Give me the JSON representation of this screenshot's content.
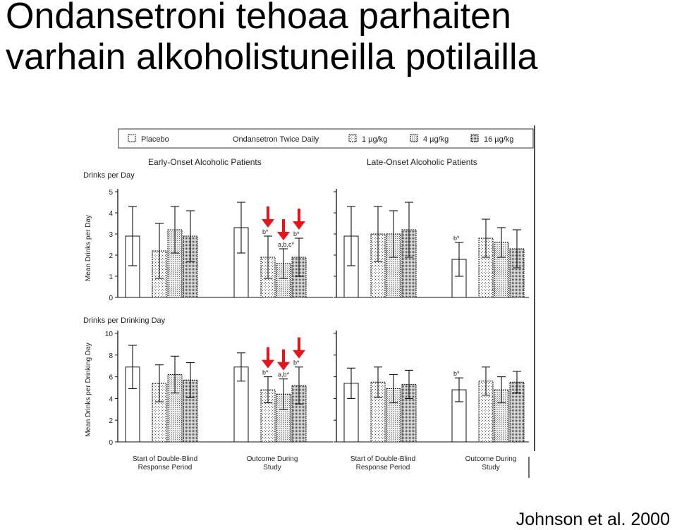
{
  "title_line1": "Ondansetroni tehoaa parhaiten",
  "title_line2": "varhain alkoholistuneilla potilailla",
  "citation": "Johnson et al. 2000",
  "legend": {
    "placebo": "Placebo",
    "group_label": "Ondansetron Twice Daily",
    "dose1": "1 µg/kg",
    "dose4": "4 µg/kg",
    "dose16": "16 µg/kg"
  },
  "panels": {
    "early": "Early-Onset Alcoholic Patients",
    "late": "Late-Onset Alcoholic Patients"
  },
  "sections": {
    "top_heading": "Drinks per Day",
    "top_ylabel": "Mean Drinks per Day",
    "bottom_heading": "Drinks per Drinking Day",
    "bottom_ylabel": "Mean Drinks per Drinking Day"
  },
  "xgroups": [
    "Start of Double-Blind Response Period",
    "Outcome During Study"
  ],
  "colors": {
    "arrow": "#e8141c",
    "bar_stroke": "#111111"
  },
  "chart_data": [
    {
      "type": "bar",
      "title": "Early-Onset Alcoholic Patients",
      "heading": "Drinks per Day",
      "ylabel": "Mean Drinks per Day",
      "ylim": [
        0,
        5
      ],
      "yticks": [
        0,
        1,
        2,
        3,
        4,
        5
      ],
      "categories": [
        "Start of Double-Blind Response Period",
        "Outcome During Study"
      ],
      "series": [
        {
          "name": "Placebo",
          "values": [
            2.9,
            3.3
          ],
          "error": [
            1.4,
            1.2
          ]
        },
        {
          "name": "1 µg/kg",
          "values": [
            2.2,
            1.9
          ],
          "error": [
            1.3,
            1.0
          ]
        },
        {
          "name": "4 µg/kg",
          "values": [
            3.2,
            1.6
          ],
          "error": [
            1.1,
            0.7
          ]
        },
        {
          "name": "16 µg/kg",
          "values": [
            2.9,
            1.9
          ],
          "error": [
            1.2,
            0.9
          ]
        }
      ],
      "annotations": [
        {
          "category": 1,
          "series": 1,
          "text": "b*"
        },
        {
          "category": 1,
          "series": 2,
          "text": "a,b,c*"
        },
        {
          "category": 1,
          "series": 3,
          "text": "b*"
        }
      ],
      "arrows_on": [
        [
          1,
          1
        ],
        [
          1,
          2
        ],
        [
          1,
          3
        ]
      ]
    },
    {
      "type": "bar",
      "title": "Late-Onset Alcoholic Patients",
      "heading": "Drinks per Day",
      "ylabel": "Mean Drinks per Day",
      "ylim": [
        0,
        5
      ],
      "yticks": [
        0,
        1,
        2,
        3,
        4,
        5
      ],
      "categories": [
        "Start of Double-Blind Response Period",
        "Outcome During Study"
      ],
      "series": [
        {
          "name": "Placebo",
          "values": [
            2.9,
            1.8
          ],
          "error": [
            1.4,
            0.8
          ]
        },
        {
          "name": "1 µg/kg",
          "values": [
            3.0,
            2.8
          ],
          "error": [
            1.3,
            0.9
          ]
        },
        {
          "name": "4 µg/kg",
          "values": [
            3.0,
            2.6
          ],
          "error": [
            1.1,
            0.7
          ]
        },
        {
          "name": "16 µg/kg",
          "values": [
            3.2,
            2.3
          ],
          "error": [
            1.3,
            0.9
          ]
        }
      ],
      "annotations": [
        {
          "category": 1,
          "series": 0,
          "text": "b*"
        }
      ],
      "arrows_on": []
    },
    {
      "type": "bar",
      "title": "Early-Onset Alcoholic Patients",
      "heading": "Drinks per Drinking Day",
      "ylabel": "Mean Drinks per Drinking Day",
      "ylim": [
        0,
        10
      ],
      "yticks": [
        0,
        2,
        4,
        6,
        8,
        10
      ],
      "categories": [
        "Start of Double-Blind Response Period",
        "Outcome During Study"
      ],
      "series": [
        {
          "name": "Placebo",
          "values": [
            6.9,
            6.9
          ],
          "error": [
            2.0,
            1.3
          ]
        },
        {
          "name": "1 µg/kg",
          "values": [
            5.4,
            4.8
          ],
          "error": [
            1.7,
            1.2
          ]
        },
        {
          "name": "4 µg/kg",
          "values": [
            6.2,
            4.4
          ],
          "error": [
            1.7,
            1.4
          ]
        },
        {
          "name": "16 µg/kg",
          "values": [
            5.7,
            5.2
          ],
          "error": [
            1.6,
            1.7
          ]
        }
      ],
      "annotations": [
        {
          "category": 1,
          "series": 1,
          "text": "b*"
        },
        {
          "category": 1,
          "series": 2,
          "text": "a,b*"
        },
        {
          "category": 1,
          "series": 3,
          "text": "b*"
        }
      ],
      "arrows_on": [
        [
          1,
          1
        ],
        [
          1,
          2
        ],
        [
          1,
          3
        ]
      ]
    },
    {
      "type": "bar",
      "title": "Late-Onset Alcoholic Patients",
      "heading": "Drinks per Drinking Day",
      "ylabel": "Mean Drinks per Drinking Day",
      "ylim": [
        0,
        10
      ],
      "yticks": [
        0,
        2,
        4,
        6,
        8,
        10
      ],
      "categories": [
        "Start of Double-Blind Response Period",
        "Outcome During Study"
      ],
      "series": [
        {
          "name": "Placebo",
          "values": [
            5.4,
            4.8
          ],
          "error": [
            1.4,
            1.1
          ]
        },
        {
          "name": "1 µg/kg",
          "values": [
            5.5,
            5.6
          ],
          "error": [
            1.4,
            1.3
          ]
        },
        {
          "name": "4 µg/kg",
          "values": [
            4.9,
            4.8
          ],
          "error": [
            1.3,
            1.2
          ]
        },
        {
          "name": "16 µg/kg",
          "values": [
            5.3,
            5.5
          ],
          "error": [
            1.3,
            1.0
          ]
        }
      ],
      "annotations": [
        {
          "category": 1,
          "series": 0,
          "text": "b*"
        }
      ],
      "arrows_on": []
    }
  ]
}
